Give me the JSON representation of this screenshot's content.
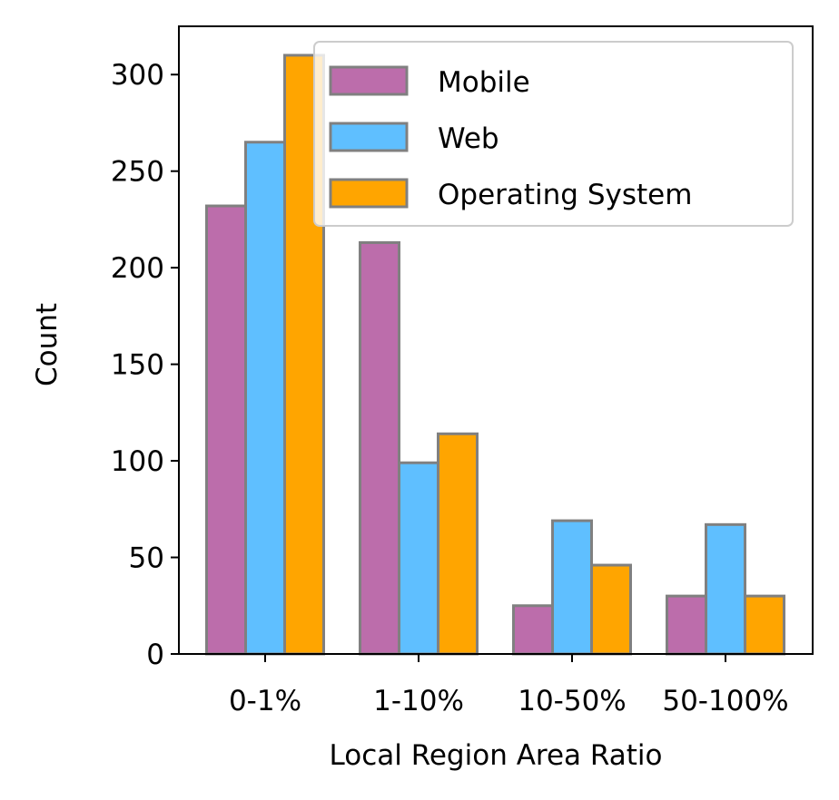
{
  "chart_data": {
    "type": "bar",
    "xlabel": "Local Region Area Ratio",
    "ylabel": "Count",
    "categories": [
      "0-1%",
      "1-10%",
      "10-50%",
      "50-100%"
    ],
    "ylim": [
      0,
      325
    ],
    "yticks": [
      0,
      50,
      100,
      150,
      200,
      250,
      300
    ],
    "grid": false,
    "legend_position": "top-right",
    "bar_edge_color": "#808080",
    "series": [
      {
        "name": "Mobile",
        "color": "#BC6DAB",
        "values": [
          232,
          213,
          25,
          30
        ]
      },
      {
        "name": "Web",
        "color": "#5FBFFF",
        "values": [
          265,
          99,
          69,
          67
        ]
      },
      {
        "name": "Operating System",
        "color": "#FFA500",
        "values": [
          310,
          114,
          46,
          30
        ]
      }
    ]
  }
}
